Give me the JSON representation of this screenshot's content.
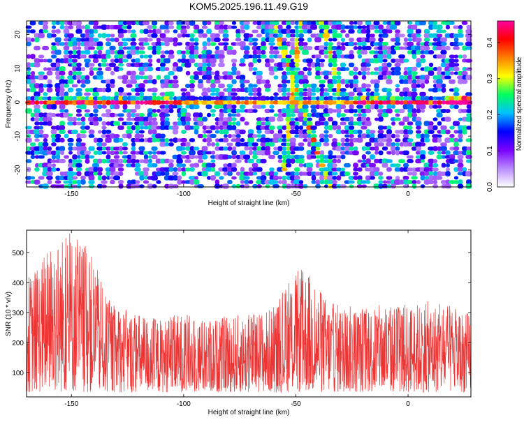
{
  "title": "KOM5.2025.196.11.49.G19",
  "chart_data": [
    {
      "type": "heatmap",
      "xlabel": "Height of straight line (km)",
      "ylabel": "Frequency (Hz)",
      "xlim": [
        -170,
        28
      ],
      "ylim": [
        -25,
        24
      ],
      "xticks": [
        -150,
        -100,
        -50,
        0
      ],
      "yticks": [
        -20,
        -10,
        0,
        10,
        20
      ],
      "colorbar": {
        "label": "Normalized spectral amplitude",
        "range": [
          0,
          0.46
        ],
        "ticks": [
          0.0,
          0.1,
          0.2,
          0.3,
          0.4
        ],
        "colors": [
          "#ffffff",
          "#b98aff",
          "#7a00ff",
          "#0000ff",
          "#00c0ff",
          "#00ff60",
          "#ffff00",
          "#ff8000",
          "#ff0000",
          "#ff00a0"
        ]
      },
      "features": [
        {
          "label": "horizontal band",
          "x": [
            -170,
            28
          ],
          "y": [
            0,
            0
          ]
        },
        {
          "label": "diagonal streak",
          "x": [
            -55,
            -48
          ],
          "y": [
            -20,
            24
          ]
        },
        {
          "label": "diagonal streak",
          "x": [
            -60,
            -35
          ],
          "y": [
            24,
            -25
          ]
        },
        {
          "label": "diagonal streak",
          "x": [
            -38,
            -30
          ],
          "y": [
            24,
            2
          ]
        }
      ]
    },
    {
      "type": "line",
      "xlabel": "Height of straight line (km)",
      "ylabel": "SNR (10 * v/v)",
      "xlim": [
        -170,
        28
      ],
      "ylim": [
        20,
        575
      ],
      "xticks": [
        -150,
        -100,
        -50,
        0
      ],
      "yticks": [
        100,
        200,
        300,
        400,
        500
      ],
      "color": "#ee3333",
      "envelope": {
        "x": [
          -170,
          -165,
          -160,
          -155,
          -150,
          -145,
          -140,
          -135,
          -130,
          -120,
          -110,
          -100,
          -90,
          -80,
          -70,
          -60,
          -55,
          -50,
          -45,
          -40,
          -35,
          -30,
          -20,
          -10,
          0,
          10,
          20,
          28
        ],
        "upper": [
          420,
          460,
          520,
          560,
          570,
          540,
          480,
          360,
          320,
          300,
          280,
          300,
          280,
          290,
          300,
          320,
          380,
          440,
          450,
          380,
          340,
          330,
          320,
          330,
          330,
          340,
          320,
          300
        ]
      }
    }
  ]
}
